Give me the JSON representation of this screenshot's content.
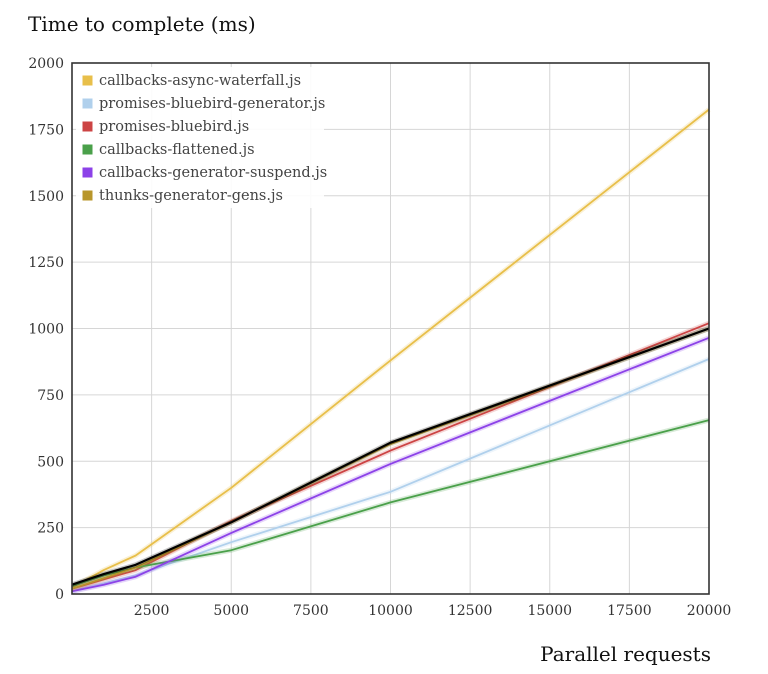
{
  "chart_data": {
    "type": "line",
    "title": "Time to complete (ms)",
    "xlabel": "Parallel requests",
    "ylabel": "",
    "xlim": [
      0,
      20000
    ],
    "ylim": [
      0,
      2000
    ],
    "xticks": [
      2500,
      5000,
      7500,
      10000,
      12500,
      15000,
      17500,
      20000
    ],
    "yticks": [
      0,
      250,
      500,
      750,
      1000,
      1250,
      1500,
      1750,
      2000
    ],
    "grid": true,
    "legend_position": "top-left",
    "x": [
      0,
      1000,
      2000,
      5000,
      10000,
      20000
    ],
    "series": [
      {
        "name": "callbacks-async-waterfall.js",
        "color": "#e8bf4a",
        "values": [
          25,
          90,
          145,
          400,
          880,
          1825
        ]
      },
      {
        "name": "promises-bluebird-generator.js",
        "color": "#b0d0ec",
        "values": [
          10,
          40,
          70,
          195,
          385,
          885
        ]
      },
      {
        "name": "promises-bluebird.js",
        "color": "#cc4444",
        "values": [
          20,
          55,
          90,
          275,
          540,
          1020
        ]
      },
      {
        "name": "callbacks-flattened.js",
        "color": "#4aa04a",
        "values": [
          30,
          70,
          100,
          165,
          345,
          655
        ]
      },
      {
        "name": "callbacks-generator-suspend.js",
        "color": "#8c42e8",
        "values": [
          10,
          35,
          65,
          230,
          490,
          965
        ]
      },
      {
        "name": "thunks-generator-gens.js",
        "color": "#b8962a",
        "values": [
          20,
          60,
          100,
          270,
          565,
          1000
        ]
      },
      {
        "color": "#000000",
        "values": [
          35,
          75,
          110,
          270,
          570,
          1000
        ]
      }
    ]
  }
}
